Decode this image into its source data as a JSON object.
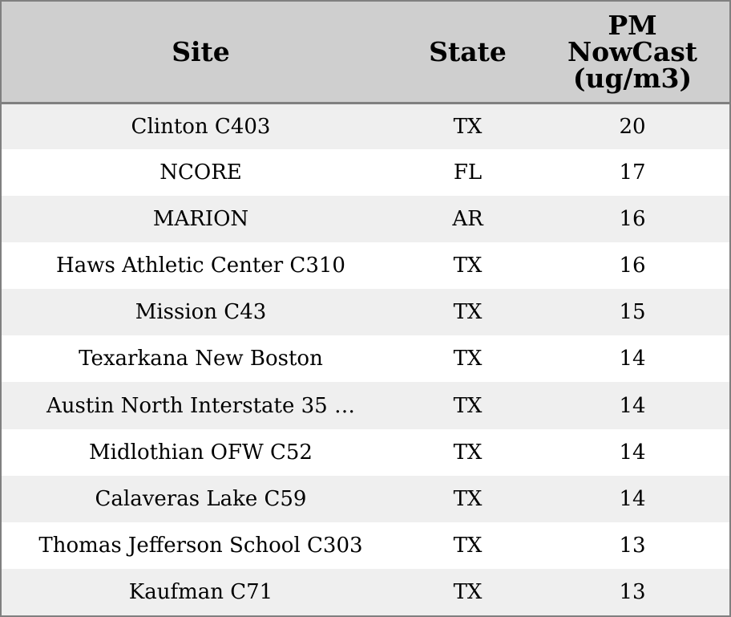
{
  "chart_data": {
    "type": "table",
    "columns": [
      "Site",
      "State",
      "PM NowCast (ug/m3)"
    ],
    "header_lines": {
      "pm": [
        "PM",
        "NowCast",
        "(ug/m3)"
      ]
    },
    "rows": [
      {
        "site": "Clinton C403",
        "state": "TX",
        "pm": "20"
      },
      {
        "site": "NCORE",
        "state": "FL",
        "pm": "17"
      },
      {
        "site": "MARION",
        "state": "AR",
        "pm": "16"
      },
      {
        "site": "Haws Athletic Center C310",
        "state": "TX",
        "pm": "16"
      },
      {
        "site": "Mission C43",
        "state": "TX",
        "pm": "15"
      },
      {
        "site": "Texarkana New Boston",
        "state": "TX",
        "pm": "14"
      },
      {
        "site": "Austin North Interstate 35 …",
        "state": "TX",
        "pm": "14"
      },
      {
        "site": "Midlothian OFW C52",
        "state": "TX",
        "pm": "14"
      },
      {
        "site": "Calaveras Lake C59",
        "state": "TX",
        "pm": "14"
      },
      {
        "site": "Thomas Jefferson School C303",
        "state": "TX",
        "pm": "13"
      },
      {
        "site": "Kaufman C71",
        "state": "TX",
        "pm": "13"
      }
    ]
  },
  "colors": {
    "header_bg": "#cfcfcf",
    "row_alt_bg": "#efefef",
    "row_bg": "#ffffff",
    "border": "#808080"
  }
}
